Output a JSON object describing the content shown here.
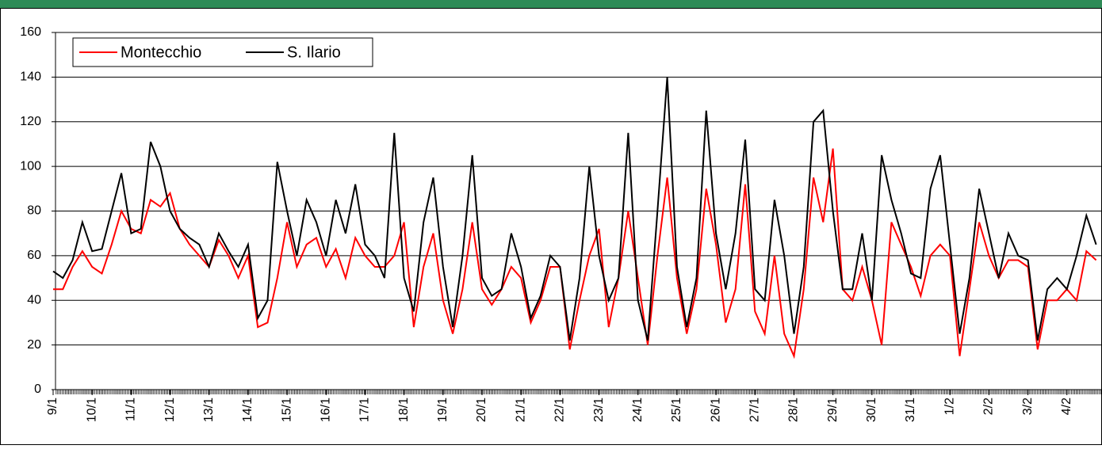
{
  "chart_data": {
    "type": "line",
    "x": [
      0,
      0.25,
      0.5,
      0.75,
      1,
      1.25,
      1.5,
      1.75,
      2,
      2.25,
      2.5,
      2.75,
      3,
      3.25,
      3.5,
      3.75,
      4,
      4.25,
      4.5,
      4.75,
      5,
      5.25,
      5.5,
      5.75,
      6,
      6.25,
      6.5,
      6.75,
      7,
      7.25,
      7.5,
      7.75,
      8,
      8.25,
      8.5,
      8.75,
      9,
      9.25,
      9.5,
      9.75,
      10,
      10.25,
      10.5,
      10.75,
      11,
      11.25,
      11.5,
      11.75,
      12,
      12.25,
      12.5,
      12.75,
      13,
      13.25,
      13.5,
      13.75,
      14,
      14.25,
      14.5,
      14.75,
      15,
      15.25,
      15.5,
      15.75,
      16,
      16.25,
      16.5,
      16.75,
      17,
      17.25,
      17.5,
      17.75,
      18,
      18.25,
      18.5,
      18.75,
      19,
      19.25,
      19.5,
      19.75,
      20,
      20.25,
      20.5,
      20.75,
      21,
      21.25,
      21.5,
      21.75,
      22,
      22.25,
      22.5,
      22.75,
      23,
      23.25,
      23.5,
      23.75,
      24,
      24.25,
      24.5,
      24.75,
      25,
      25.25,
      25.5,
      25.75,
      26,
      26.25,
      26.5,
      26.75
    ],
    "series": [
      {
        "name": "Montecchio",
        "color": "#ff0000",
        "values": [
          45,
          45,
          55,
          62,
          55,
          52,
          65,
          80,
          72,
          70,
          85,
          82,
          88,
          72,
          65,
          60,
          55,
          67,
          60,
          50,
          60,
          28,
          30,
          50,
          75,
          55,
          65,
          68,
          55,
          63,
          50,
          68,
          60,
          55,
          55,
          60,
          75,
          28,
          55,
          70,
          40,
          25,
          45,
          75,
          45,
          38,
          45,
          55,
          50,
          30,
          40,
          55,
          55,
          18,
          40,
          60,
          72,
          28,
          50,
          80,
          50,
          20,
          60,
          95,
          50,
          25,
          45,
          90,
          65,
          30,
          45,
          92,
          35,
          25,
          60,
          25,
          15,
          45,
          95,
          75,
          108,
          45,
          40,
          55,
          40,
          20,
          75,
          65,
          55,
          42,
          60,
          65,
          60,
          15,
          45,
          75,
          60,
          50,
          58,
          58,
          55,
          18,
          40,
          40,
          45,
          40,
          62,
          58
        ]
      },
      {
        "name": "S. Ilario",
        "color": "#000000",
        "values": [
          53,
          50,
          58,
          75,
          62,
          63,
          80,
          97,
          70,
          72,
          111,
          100,
          80,
          72,
          68,
          65,
          55,
          70,
          62,
          55,
          65,
          32,
          40,
          102,
          80,
          60,
          85,
          75,
          60,
          85,
          70,
          92,
          65,
          60,
          50,
          115,
          50,
          35,
          75,
          95,
          55,
          28,
          60,
          105,
          50,
          42,
          45,
          70,
          55,
          32,
          42,
          60,
          55,
          22,
          50,
          100,
          60,
          40,
          50,
          115,
          40,
          22,
          80,
          140,
          55,
          28,
          50,
          125,
          70,
          45,
          70,
          112,
          45,
          40,
          85,
          60,
          25,
          55,
          120,
          125,
          80,
          45,
          45,
          70,
          40,
          105,
          85,
          70,
          52,
          50,
          90,
          105,
          65,
          25,
          50,
          90,
          70,
          50,
          70,
          60,
          58,
          22,
          45,
          50,
          45,
          60,
          78,
          65
        ]
      }
    ],
    "xlim": [
      0,
      26.9
    ],
    "xticks": [
      {
        "value": 0,
        "label": "9/1"
      },
      {
        "value": 1,
        "label": "10/1"
      },
      {
        "value": 2,
        "label": "11/1"
      },
      {
        "value": 3,
        "label": "12/1"
      },
      {
        "value": 4,
        "label": "13/1"
      },
      {
        "value": 5,
        "label": "14/1"
      },
      {
        "value": 6,
        "label": "15/1"
      },
      {
        "value": 7,
        "label": "16/1"
      },
      {
        "value": 8,
        "label": "17/1"
      },
      {
        "value": 9,
        "label": "18/1"
      },
      {
        "value": 10,
        "label": "19/1"
      },
      {
        "value": 11,
        "label": "20/1"
      },
      {
        "value": 12,
        "label": "21/1"
      },
      {
        "value": 13,
        "label": "22/1"
      },
      {
        "value": 14,
        "label": "23/1"
      },
      {
        "value": 15,
        "label": "24/1"
      },
      {
        "value": 16,
        "label": "25/1"
      },
      {
        "value": 17,
        "label": "26/1"
      },
      {
        "value": 18,
        "label": "27/1"
      },
      {
        "value": 19,
        "label": "28/1"
      },
      {
        "value": 20,
        "label": "29/1"
      },
      {
        "value": 21,
        "label": "30/1"
      },
      {
        "value": 22,
        "label": "31/1"
      },
      {
        "value": 23,
        "label": "1/2"
      },
      {
        "value": 24,
        "label": "2/2"
      },
      {
        "value": 25,
        "label": "3/2"
      },
      {
        "value": 26,
        "label": "4/2"
      }
    ],
    "ylim": [
      0,
      160
    ],
    "yticks": [
      0,
      20,
      40,
      60,
      80,
      100,
      120,
      140,
      160
    ],
    "grid": true,
    "legend": "upper left"
  }
}
